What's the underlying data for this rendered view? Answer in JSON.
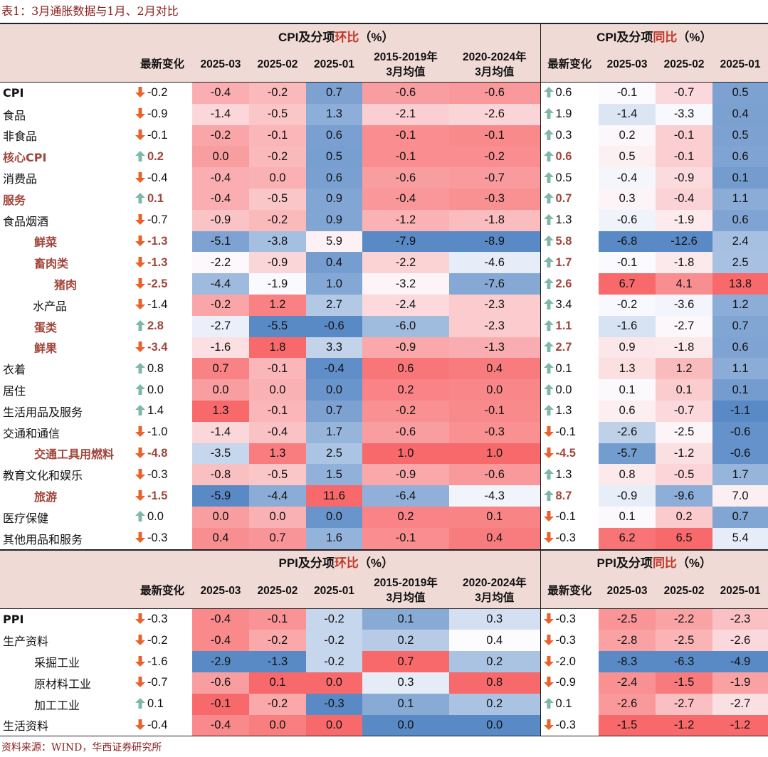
{
  "title": "表1：3月通胀数据与1月、2月对比",
  "source": "资料来源：WIND，华西证券研究所",
  "colors": {
    "up_arrow": "#7FB8A8",
    "down_arrow": "#E8632C",
    "highlight_text": "#A0453A",
    "header_bg": "#F0DAD6"
  },
  "cpi": {
    "header_mom_prefix": "CPI及分项",
    "header_mom_key": "环比",
    "header_mom_suffix": "（%）",
    "header_yoy_prefix": "CPI及分项",
    "header_yoy_key": "同比",
    "header_yoy_suffix": "（%）",
    "cols": {
      "chg": "最新变化",
      "m3": "2025-03",
      "m2": "2025-02",
      "m1": "2025-01",
      "avg1_l1": "2015-2019年",
      "avg1_l2": "3月均值",
      "avg2_l1": "2020-2024年",
      "avg2_l2": "3月均值"
    },
    "rows": [
      {
        "label": "CPI",
        "mom_chg": "-0.2",
        "mom": [
          "-0.4",
          "-0.2",
          "0.7",
          "-0.6",
          "-0.6"
        ],
        "yoy_chg": "0.6",
        "yoy": [
          "-0.1",
          "-0.7",
          "0.5"
        ]
      },
      {
        "label": "食品",
        "mom_chg": "-0.9",
        "mom": [
          "-1.4",
          "-0.5",
          "1.3",
          "-2.1",
          "-2.6"
        ],
        "yoy_chg": "1.9",
        "yoy": [
          "-1.4",
          "-3.3",
          "0.4"
        ]
      },
      {
        "label": "非食品",
        "mom_chg": "-0.1",
        "mom": [
          "-0.2",
          "-0.1",
          "0.6",
          "-0.1",
          "-0.1"
        ],
        "yoy_chg": "0.3",
        "yoy": [
          "0.2",
          "-0.1",
          "0.5"
        ]
      },
      {
        "label": "核心CPI",
        "mom_chg": "0.2",
        "mom": [
          "0.0",
          "-0.2",
          "0.5",
          "-0.1",
          "-0.2"
        ],
        "yoy_chg": "0.6",
        "yoy": [
          "0.5",
          "-0.1",
          "0.6"
        ]
      },
      {
        "label": "消费品",
        "mom_chg": "-0.4",
        "mom": [
          "-0.4",
          "0.0",
          "0.6",
          "-0.6",
          "-0.7"
        ],
        "yoy_chg": "0.5",
        "yoy": [
          "-0.4",
          "-0.9",
          "0.1"
        ]
      },
      {
        "label": "服务",
        "mom_chg": "0.1",
        "mom": [
          "-0.4",
          "-0.5",
          "0.9",
          "-0.4",
          "-0.3"
        ],
        "yoy_chg": "0.7",
        "yoy": [
          "0.3",
          "-0.4",
          "1.1"
        ]
      },
      {
        "label": "食品烟酒",
        "mom_chg": "-0.7",
        "mom": [
          "-0.9",
          "-0.2",
          "0.9",
          "-1.2",
          "-1.8"
        ],
        "yoy_chg": "1.3",
        "yoy": [
          "-0.6",
          "-1.9",
          "0.6"
        ]
      },
      {
        "label": "鲜菜",
        "mom_chg": "-1.3",
        "mom": [
          "-5.1",
          "-3.8",
          "5.9",
          "-7.9",
          "-8.9"
        ],
        "yoy_chg": "5.8",
        "yoy": [
          "-6.8",
          "-12.6",
          "2.4"
        ]
      },
      {
        "label": "畜肉类",
        "mom_chg": "-1.3",
        "mom": [
          "-2.2",
          "-0.9",
          "0.4",
          "-2.2",
          "-4.6"
        ],
        "yoy_chg": "1.7",
        "yoy": [
          "-0.1",
          "-1.8",
          "2.5"
        ]
      },
      {
        "label": "猪肉",
        "mom_chg": "-2.5",
        "mom": [
          "-4.4",
          "-1.9",
          "1.0",
          "-3.2",
          "-7.6"
        ],
        "yoy_chg": "2.6",
        "yoy": [
          "6.7",
          "4.1",
          "13.8"
        ]
      },
      {
        "label": "水产品",
        "mom_chg": "-1.4",
        "mom": [
          "-0.2",
          "1.2",
          "2.7",
          "-2.4",
          "-2.3"
        ],
        "yoy_chg": "3.4",
        "yoy": [
          "-0.2",
          "-3.6",
          "1.2"
        ]
      },
      {
        "label": "蛋类",
        "mom_chg": "2.8",
        "mom": [
          "-2.7",
          "-5.5",
          "-0.6",
          "-6.0",
          "-2.3"
        ],
        "yoy_chg": "1.1",
        "yoy": [
          "-1.6",
          "-2.7",
          "0.7"
        ]
      },
      {
        "label": "鲜果",
        "mom_chg": "-3.4",
        "mom": [
          "-1.6",
          "1.8",
          "3.3",
          "-0.9",
          "-1.3"
        ],
        "yoy_chg": "2.7",
        "yoy": [
          "0.9",
          "-1.8",
          "0.6"
        ]
      },
      {
        "label": "衣着",
        "mom_chg": "0.8",
        "mom": [
          "0.7",
          "-0.1",
          "-0.4",
          "0.6",
          "0.4"
        ],
        "yoy_chg": "0.1",
        "yoy": [
          "1.3",
          "1.2",
          "1.1"
        ]
      },
      {
        "label": "居住",
        "mom_chg": "0.0",
        "mom": [
          "0.0",
          "0.0",
          "0.0",
          "0.2",
          "0.0"
        ],
        "yoy_chg": "0.0",
        "yoy": [
          "0.1",
          "0.1",
          "0.1"
        ]
      },
      {
        "label": "生活用品及服务",
        "mom_chg": "1.4",
        "mom": [
          "1.3",
          "-0.1",
          "0.7",
          "-0.2",
          "-0.1"
        ],
        "yoy_chg": "1.3",
        "yoy": [
          "0.6",
          "-0.7",
          "-1.1"
        ]
      },
      {
        "label": "交通和通信",
        "mom_chg": "-1.0",
        "mom": [
          "-1.4",
          "-0.4",
          "1.7",
          "-0.6",
          "-0.3"
        ],
        "yoy_chg": "-0.1",
        "yoy": [
          "-2.6",
          "-2.5",
          "-0.6"
        ]
      },
      {
        "label": "交通工具用燃料",
        "mom_chg": "-4.8",
        "mom": [
          "-3.5",
          "1.3",
          "2.5",
          "1.0",
          "1.0"
        ],
        "yoy_chg": "-4.5",
        "yoy": [
          "-5.7",
          "-1.2",
          "-0.6"
        ]
      },
      {
        "label": "教育文化和娱乐",
        "mom_chg": "-0.3",
        "mom": [
          "-0.8",
          "-0.5",
          "1.5",
          "-0.9",
          "-0.6"
        ],
        "yoy_chg": "1.3",
        "yoy": [
          "0.8",
          "-0.5",
          "1.7"
        ]
      },
      {
        "label": "旅游",
        "mom_chg": "-1.5",
        "mom": [
          "-5.9",
          "-4.4",
          "11.6",
          "-6.4",
          "-4.3"
        ],
        "yoy_chg": "8.7",
        "yoy": [
          "-0.9",
          "-9.6",
          "7.0"
        ]
      },
      {
        "label": "医疗保健",
        "mom_chg": "0.0",
        "mom": [
          "0.0",
          "0.0",
          "0.0",
          "0.2",
          "0.1"
        ],
        "yoy_chg": "-0.1",
        "yoy": [
          "0.1",
          "0.2",
          "0.7"
        ]
      },
      {
        "label": "其他用品和服务",
        "mom_chg": "-0.3",
        "mom": [
          "0.4",
          "0.7",
          "1.6",
          "-0.1",
          "0.4"
        ],
        "yoy_chg": "-0.3",
        "yoy": [
          "6.2",
          "6.5",
          "5.4"
        ]
      }
    ]
  },
  "ppi": {
    "header_mom_prefix": "PPI及分项",
    "header_mom_key": "环比",
    "header_mom_suffix": "（%）",
    "header_yoy_prefix": "PPI及分项",
    "header_yoy_key": "同比",
    "header_yoy_suffix": "（%）",
    "cols": {
      "chg": "最新变化",
      "m3": "2025-03",
      "m2": "2025-02",
      "m1": "2025-01",
      "avg1_l1": "2015-2019年",
      "avg1_l2": "3月均值",
      "avg2_l1": "2020-2024年",
      "avg2_l2": "3月均值"
    },
    "rows": [
      {
        "label": "PPI",
        "mom_chg": "-0.3",
        "mom": [
          "-0.4",
          "-0.1",
          "-0.2",
          "0.1",
          "0.3"
        ],
        "yoy_chg": "-0.3",
        "yoy": [
          "-2.5",
          "-2.2",
          "-2.3"
        ]
      },
      {
        "label": "生产资料",
        "mom_chg": "-0.2",
        "mom": [
          "-0.4",
          "-0.2",
          "-0.2",
          "0.2",
          "0.4"
        ],
        "yoy_chg": "-0.3",
        "yoy": [
          "-2.8",
          "-2.5",
          "-2.6"
        ]
      },
      {
        "label": "采掘工业",
        "mom_chg": "-1.6",
        "mom": [
          "-2.9",
          "-1.3",
          "-0.2",
          "0.7",
          "0.2"
        ],
        "yoy_chg": "-2.0",
        "yoy": [
          "-8.3",
          "-6.3",
          "-4.9"
        ]
      },
      {
        "label": "原材料工业",
        "mom_chg": "-0.7",
        "mom": [
          "-0.6",
          "0.1",
          "0.0",
          "0.3",
          "0.8"
        ],
        "yoy_chg": "-0.9",
        "yoy": [
          "-2.4",
          "-1.5",
          "-1.9"
        ]
      },
      {
        "label": "加工工业",
        "mom_chg": "0.1",
        "mom": [
          "-0.1",
          "-0.2",
          "-0.3",
          "0.1",
          "0.2"
        ],
        "yoy_chg": "0.1",
        "yoy": [
          "-2.6",
          "-2.7",
          "-2.7"
        ]
      },
      {
        "label": "生活资料",
        "mom_chg": "-0.4",
        "mom": [
          "-0.4",
          "0.0",
          "0.0",
          "0.0",
          "0.0"
        ],
        "yoy_chg": "-0.3",
        "yoy": [
          "-1.5",
          "-1.2",
          "-1.2"
        ]
      }
    ]
  }
}
